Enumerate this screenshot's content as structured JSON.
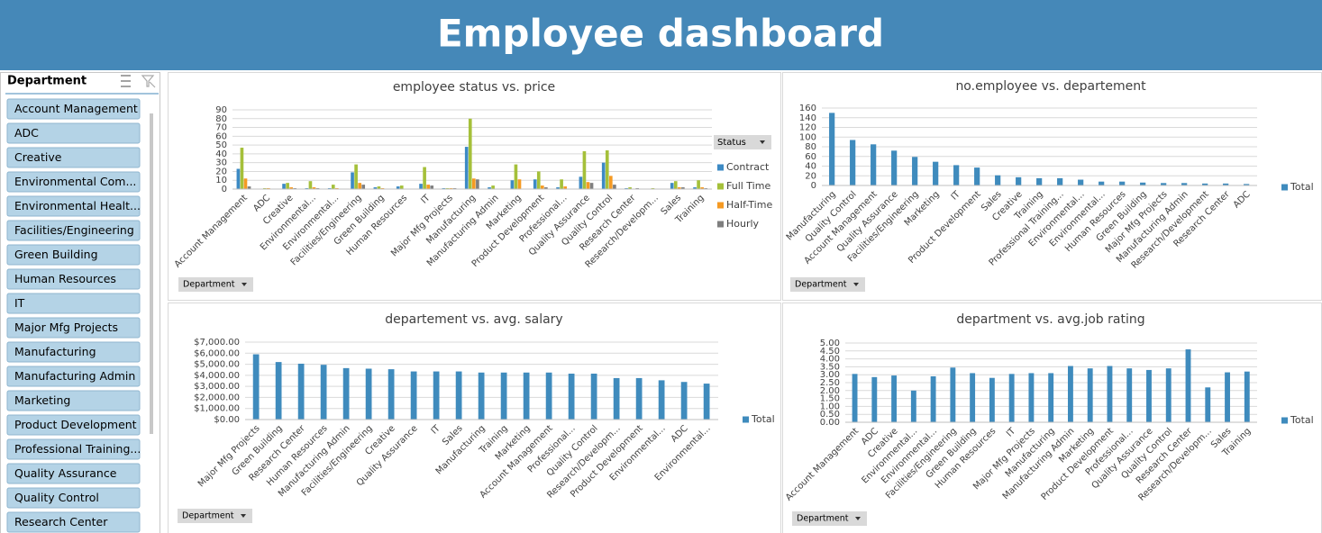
{
  "header": {
    "title": "Employee dashboard"
  },
  "slicer": {
    "title": "Department",
    "items": [
      "Account Management",
      "ADC",
      "Creative",
      "Environmental Com...",
      "Environmental Healt...",
      "Facilities/Engineering",
      "Green Building",
      "Human Resources",
      "IT",
      "Major Mfg Projects",
      "Manufacturing",
      "Manufacturing Admin",
      "Marketing",
      "Product Development",
      "Professional Training...",
      "Quality Assurance",
      "Quality Control",
      "Research Center"
    ]
  },
  "chart_data": [
    {
      "type": "bar",
      "title": "employee status vs. price",
      "legend_title": "Status",
      "filter_label": "Department",
      "legend": "right",
      "categories": [
        "Account Management",
        "ADC",
        "Creative",
        "Environmental...",
        "Environmental...",
        "Facilities/Engineering",
        "Green Building",
        "Human Resources",
        "IT",
        "Major Mfg Projects",
        "Manufacturing",
        "Manufacturing Admin",
        "Marketing",
        "Product Development",
        "Professional...",
        "Quality Assurance",
        "Quality Control",
        "Research Center",
        "Research/Developm...",
        "Sales",
        "Training"
      ],
      "series": [
        {
          "name": "Contract",
          "color": "#3d8ac4",
          "values": [
            23,
            0,
            6,
            1,
            1,
            19,
            2,
            3,
            6,
            1,
            48,
            2,
            10,
            11,
            2,
            14,
            30,
            1,
            0,
            7,
            2
          ]
        },
        {
          "name": "Full Time",
          "color": "#a5c03a",
          "values": [
            47,
            1,
            7,
            9,
            5,
            28,
            3,
            4,
            25,
            1,
            80,
            4,
            28,
            20,
            11,
            43,
            44,
            2,
            1,
            9,
            10
          ]
        },
        {
          "name": "Half-Time",
          "color": "#f59a23",
          "values": [
            12,
            1,
            2,
            2,
            1,
            7,
            1,
            0,
            5,
            1,
            12,
            0,
            11,
            4,
            3,
            8,
            15,
            0,
            0,
            2,
            2
          ]
        },
        {
          "name": "Hourly",
          "color": "#7f7f7f",
          "values": [
            3,
            0,
            1,
            1,
            0,
            5,
            0,
            0,
            4,
            1,
            11,
            0,
            0,
            2,
            0,
            7,
            5,
            1,
            0,
            2,
            1
          ]
        }
      ],
      "ylim": [
        0,
        90
      ],
      "yticks": [
        0,
        10,
        20,
        30,
        40,
        50,
        60,
        70,
        80,
        90
      ],
      "grid": true
    },
    {
      "type": "bar",
      "title": "no.employee vs. departement",
      "filter_label": "Department",
      "legend": "right",
      "categories": [
        "Manufacturing",
        "Quality Control",
        "Account Management",
        "Quality Assurance",
        "Facilities/Engineering",
        "Marketing",
        "IT",
        "Product Development",
        "Sales",
        "Creative",
        "Training",
        "Professional Training...",
        "Environmental...",
        "Environmental...",
        "Human Resources",
        "Green Building",
        "Major Mfg Projects",
        "Manufacturing Admin",
        "Research/Development",
        "Research Center",
        "ADC"
      ],
      "series": [
        {
          "name": "Total",
          "color": "#3f8bbd",
          "values": [
            150,
            94,
            85,
            72,
            59,
            49,
            42,
            37,
            21,
            17,
            15,
            15,
            12,
            8,
            8,
            6,
            5,
            5,
            4,
            4,
            3
          ]
        }
      ],
      "ylim": [
        0,
        160
      ],
      "yticks": [
        0,
        20,
        40,
        60,
        80,
        100,
        120,
        140,
        160
      ],
      "grid": true
    },
    {
      "type": "bar",
      "title": "departement vs. avg. salary",
      "filter_label": "Department",
      "legend": "right",
      "categories": [
        "Major Mfg Projects",
        "Green Building",
        "Research Center",
        "Human Resources",
        "Manufacturing Admin",
        "Facilities/Engineering",
        "Creative",
        "Quality Assurance",
        "IT",
        "Sales",
        "Manufacturing",
        "Training",
        "Marketing",
        "Account Management",
        "Professional...",
        "Quality Control",
        "Research/Developm...",
        "Product Development",
        "Environmental...",
        "ADC",
        "Environmental..."
      ],
      "series": [
        {
          "name": "Total",
          "color": "#3f8bbd",
          "values": [
            5900,
            5200,
            5050,
            4950,
            4650,
            4600,
            4550,
            4350,
            4350,
            4350,
            4250,
            4250,
            4250,
            4250,
            4150,
            4150,
            3750,
            3750,
            3550,
            3400,
            3250
          ]
        }
      ],
      "ylim": [
        0,
        7000
      ],
      "yticks": [
        {
          "value": 0,
          "label": "$0.00"
        },
        {
          "value": 1000,
          "label": "$1,000.00"
        },
        {
          "value": 2000,
          "label": "$2,000.00"
        },
        {
          "value": 3000,
          "label": "$3,000.00"
        },
        {
          "value": 4000,
          "label": "$4,000.00"
        },
        {
          "value": 5000,
          "label": "$5,000.00"
        },
        {
          "value": 6000,
          "label": "$6,000.00"
        },
        {
          "value": 7000,
          "label": "$7,000.00"
        }
      ],
      "grid": true
    },
    {
      "type": "bar",
      "title": "department vs. avg.job rating",
      "filter_label": "Department",
      "legend": "right",
      "categories": [
        "Account Management",
        "ADC",
        "Creative",
        "Environmental...",
        "Environmental...",
        "Facilities/Engineering",
        "Green Building",
        "Human Resources",
        "IT",
        "Major Mfg Projects",
        "Manufacturing",
        "Manufacturing Admin",
        "Marketing",
        "Product Development",
        "Professional...",
        "Quality Assurance",
        "Quality Control",
        "Research Center",
        "Research/Developm...",
        "Sales",
        "Training"
      ],
      "series": [
        {
          "name": "Total",
          "color": "#3f8bbd",
          "values": [
            3.05,
            2.85,
            2.95,
            2.0,
            2.9,
            3.45,
            3.1,
            2.8,
            3.05,
            3.1,
            3.1,
            3.55,
            3.4,
            3.55,
            3.4,
            3.3,
            3.4,
            4.6,
            2.2,
            3.15,
            3.2
          ]
        }
      ],
      "ylim": [
        0,
        5
      ],
      "yticks": [
        {
          "value": 0,
          "label": "0.00"
        },
        {
          "value": 0.5,
          "label": "0.50"
        },
        {
          "value": 1,
          "label": "1.00"
        },
        {
          "value": 1.5,
          "label": "1.50"
        },
        {
          "value": 2,
          "label": "2.00"
        },
        {
          "value": 2.5,
          "label": "2.50"
        },
        {
          "value": 3,
          "label": "3.00"
        },
        {
          "value": 3.5,
          "label": "3.50"
        },
        {
          "value": 4,
          "label": "4.00"
        },
        {
          "value": 4.5,
          "label": "4.50"
        },
        {
          "value": 5,
          "label": "5.00"
        }
      ],
      "grid": true
    }
  ]
}
